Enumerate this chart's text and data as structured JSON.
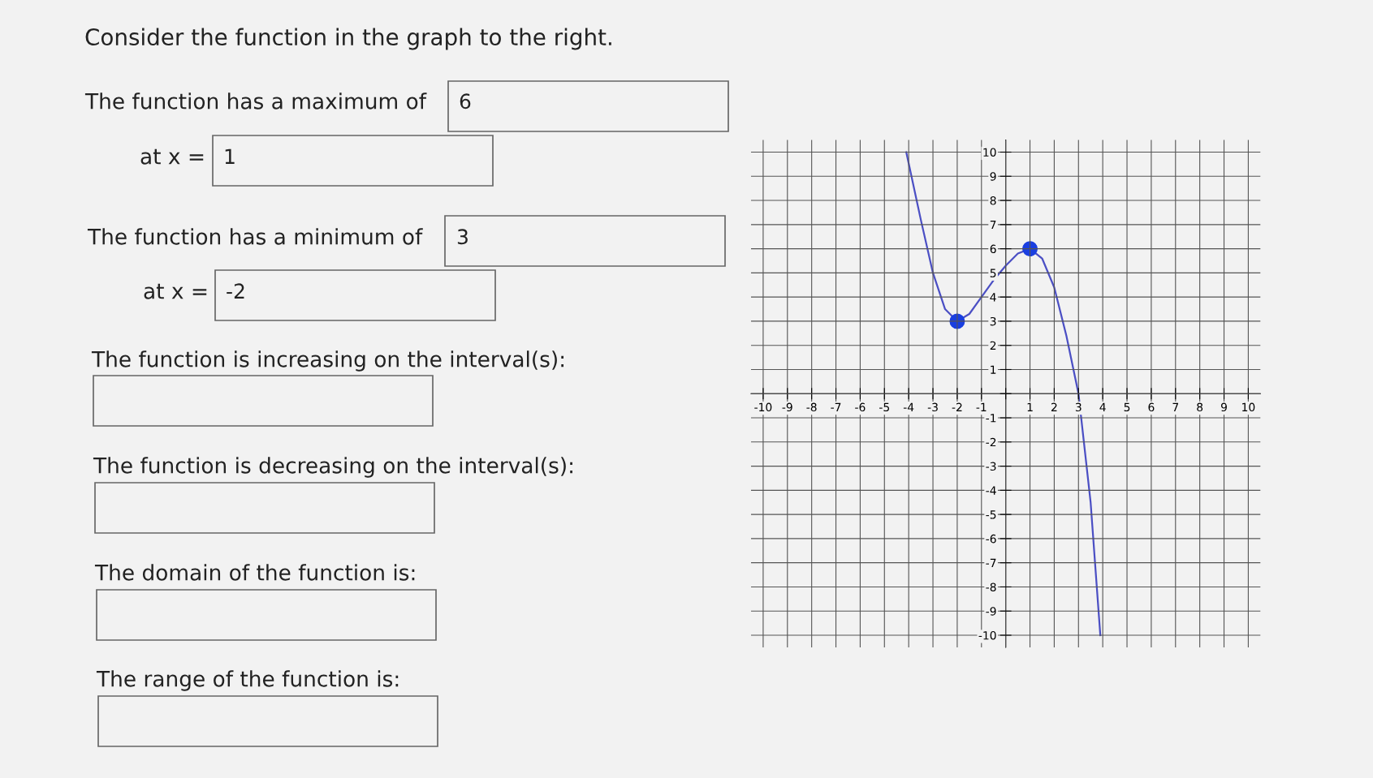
{
  "chart_data": {
    "type": "line",
    "x": [
      -4.1,
      -3.5,
      -3,
      -2.5,
      -2,
      -1.5,
      -1,
      -0.5,
      0,
      0.5,
      1,
      1.5,
      2,
      2.5,
      3,
      3.5,
      3.9
    ],
    "series": [
      {
        "color": "#4b4fc4",
        "values": [
          10,
          7.2,
          5.0,
          3.5,
          3,
          3.3,
          4.0,
          4.7,
          5.3,
          5.8,
          6,
          5.6,
          4.4,
          2.4,
          0,
          -4.5,
          -10
        ]
      },
      {
        "type": "scatter",
        "color": "#1a3fe0",
        "x": [
          -2,
          1
        ],
        "values": [
          3,
          6
        ],
        "marker": "circle"
      }
    ],
    "xlim": [
      -10.5,
      10.5
    ],
    "ylim": [
      -10.5,
      10.5
    ],
    "xticks": [
      -10,
      -9,
      -8,
      -7,
      -6,
      -5,
      -4,
      -3,
      -2,
      -1,
      {
        "value": 0,
        "label": null
      },
      1,
      2,
      3,
      4,
      5,
      6,
      7,
      8,
      9,
      10
    ],
    "yticks": [
      -10,
      -9,
      -8,
      -7,
      -6,
      -5,
      -4,
      -3,
      -2,
      -1,
      {
        "value": 0,
        "label": null
      },
      1,
      2,
      3,
      4,
      5,
      6,
      7,
      8,
      9,
      10
    ],
    "grid": true,
    "annotations": [
      "Consider the function in the graph to the right.",
      "The function has a maximum of",
      "6",
      "at x =",
      "1",
      "The function has a minimum of",
      "3",
      "at x =",
      "-2",
      "The function is increasing on the interval(s):",
      "The function is decreasing on the interval(s):",
      "The domain of the function is:",
      "The range of the function is:"
    ]
  }
}
